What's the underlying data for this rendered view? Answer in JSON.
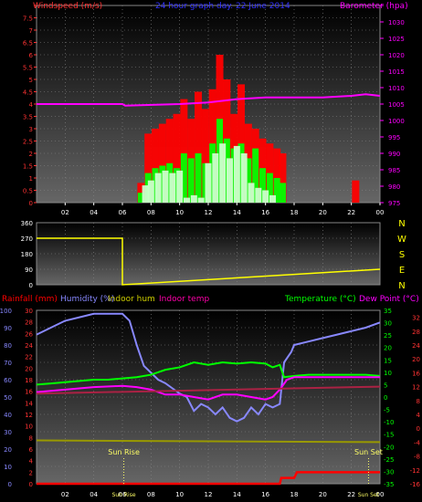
{
  "chart_data": [
    {
      "type": "bar",
      "title": "24 hour graph day. 22 June 2014",
      "ylabel": "Windspeed (m/s)",
      "y2label": "Barometer (hpa)",
      "x_ticks": [
        "02",
        "04",
        "06",
        "08",
        "10",
        "12",
        "14",
        "16",
        "18",
        "20",
        "22",
        "00"
      ],
      "ylim": [
        0,
        8
      ],
      "y_ticks": [
        "0",
        "0.5",
        "1",
        "1.5",
        "2",
        "2.5",
        "3",
        "3.5",
        "4",
        "4.5",
        "5",
        "5.5",
        "6",
        "6.5",
        "7",
        "7.5",
        "8"
      ],
      "y2lim": [
        975,
        1035
      ],
      "y2_ticks": [
        "975",
        "980",
        "985",
        "990",
        "995",
        "1000",
        "1005",
        "1010",
        "1015",
        "1020",
        "1025",
        "1030",
        "1035"
      ],
      "series": [
        {
          "key": "gust",
          "color": "#ff0000",
          "x": [
            7.3,
            7.8,
            8.3,
            8.8,
            9.3,
            9.8,
            10.3,
            10.8,
            11.3,
            11.8,
            12.3,
            12.8,
            13.3,
            13.8,
            14.3,
            14.8,
            15.3,
            15.8,
            16.3,
            16.8,
            17.2,
            22.3
          ],
          "values": [
            0.8,
            2.8,
            3.0,
            3.2,
            3.4,
            3.6,
            4.2,
            3.4,
            4.5,
            3.8,
            4.6,
            6.0,
            5.0,
            3.6,
            4.8,
            3.2,
            3.0,
            2.6,
            2.4,
            2.2,
            2.0,
            0.9
          ]
        },
        {
          "key": "speed",
          "color": "#00ff00",
          "x": [
            7.3,
            7.8,
            8.3,
            8.8,
            9.3,
            9.8,
            10.3,
            10.8,
            11.3,
            11.8,
            12.3,
            12.8,
            13.3,
            13.8,
            14.3,
            14.8,
            15.3,
            15.8,
            16.3,
            16.8,
            17.2
          ],
          "values": [
            0.4,
            1.2,
            1.4,
            1.5,
            1.6,
            1.4,
            2.0,
            1.8,
            2.0,
            1.6,
            2.4,
            3.4,
            2.6,
            2.2,
            2.4,
            1.8,
            2.2,
            1.4,
            1.2,
            1.0,
            0.8
          ]
        },
        {
          "key": "avg",
          "color": "#ccffcc",
          "x": [
            7.6,
            8.0,
            8.5,
            9.0,
            9.5,
            10.0,
            10.5,
            11.0,
            11.5,
            12.0,
            12.5,
            13.0,
            13.5,
            14.0,
            14.5,
            15.0,
            15.5,
            16.0,
            16.5
          ],
          "values": [
            0.7,
            0.9,
            1.2,
            1.3,
            1.2,
            1.3,
            0.2,
            0.3,
            0.2,
            1.6,
            2.0,
            2.4,
            1.8,
            2.3,
            2.0,
            0.8,
            0.6,
            0.5,
            0.3
          ]
        },
        {
          "key": "barometer",
          "color": "#ff00ff",
          "axis": "right",
          "x": [
            0,
            6,
            6.2,
            10,
            12,
            14,
            16,
            18,
            20,
            22,
            23,
            24
          ],
          "values": [
            1005,
            1005,
            1004.5,
            1005,
            1005.5,
            1006.5,
            1007,
            1007,
            1007,
            1007.5,
            1008,
            1007.5
          ]
        }
      ]
    },
    {
      "type": "scatter",
      "ylabel_right": [
        "N",
        "W",
        "S",
        "E",
        "N"
      ],
      "ylim": [
        0,
        360
      ],
      "y_ticks": [
        "0",
        "90",
        "180",
        "270",
        "360"
      ],
      "series": [
        {
          "key": "direction",
          "color": "#ffff00",
          "x": [
            0,
            6.0,
            6.0,
            24
          ],
          "values": [
            270,
            270,
            0,
            90
          ]
        }
      ]
    },
    {
      "type": "line",
      "legend_left": [
        {
          "label": "Rainfall (mm)",
          "color": "#ff0000"
        },
        {
          "label": "Humidity (%)",
          "color": "#8888ff"
        },
        {
          "label": "Indoor hum",
          "color": "#cccc00"
        },
        {
          "label": "Indoor temp",
          "color": "#ff00aa"
        }
      ],
      "legend_right": [
        {
          "label": "Temperature (°C)",
          "color": "#00ff00"
        },
        {
          "label": "Dew Point (°C)",
          "color": "#ff00ff"
        }
      ],
      "y_hum_lim": [
        0,
        100
      ],
      "y_hum_ticks": [
        "0",
        "10",
        "20",
        "30",
        "40",
        "50",
        "60",
        "70",
        "80",
        "90",
        "100"
      ],
      "y_rain_lim": [
        0,
        30
      ],
      "y_rain_ticks": [
        "0",
        "2",
        "4",
        "6",
        "8",
        "10",
        "12",
        "14",
        "16",
        "18",
        "20",
        "22",
        "24",
        "26",
        "28",
        "30"
      ],
      "y_temp_lim": [
        -35,
        35
      ],
      "y_temp_ticks": [
        "-35",
        "-30",
        "-25",
        "-20",
        "-15",
        "-10",
        "-5",
        "0",
        "5",
        "10",
        "15",
        "20",
        "25",
        "30",
        "35"
      ],
      "y_indoor_lim": [
        -16,
        34
      ],
      "y_indoor_ticks": [
        "-16",
        "-14",
        "-12",
        "-10",
        "-8",
        "-6",
        "-4",
        "-2",
        "0",
        "2",
        "4",
        "6",
        "8",
        "10",
        "12",
        "14",
        "16",
        "18",
        "20",
        "22",
        "24",
        "26",
        "28",
        "30",
        "32",
        "34"
      ],
      "x_ticks": [
        "02",
        "04",
        "06",
        "08",
        "10",
        "12",
        "14",
        "16",
        "18",
        "20",
        "22",
        "00"
      ],
      "annotations": [
        {
          "label": "Sun Rise",
          "x": 6.1
        },
        {
          "label": "Sun Set",
          "x": 23.2
        }
      ],
      "bottom_labels": [
        "Sun Rise",
        "Sun Set"
      ],
      "series": [
        {
          "key": "humidity",
          "color": "#8888ff",
          "axis": "hum",
          "x": [
            0,
            1,
            2,
            3,
            4,
            5,
            6,
            6.5,
            7,
            7.5,
            8,
            8.5,
            9,
            9.5,
            10,
            10.5,
            11,
            11.5,
            12,
            12.5,
            13,
            13.5,
            14,
            14.5,
            15,
            15.5,
            16,
            16.5,
            17,
            17.3,
            17.8,
            18,
            19,
            20,
            21,
            22,
            23,
            24
          ],
          "values": [
            86,
            90,
            94,
            96,
            98,
            98,
            98,
            94,
            80,
            68,
            64,
            60,
            58,
            55,
            52,
            50,
            42,
            46,
            44,
            40,
            44,
            38,
            36,
            38,
            44,
            40,
            46,
            44,
            46,
            70,
            76,
            80,
            82,
            84,
            86,
            88,
            90,
            93
          ]
        },
        {
          "key": "temperature",
          "color": "#00ff00",
          "axis": "temp",
          "x": [
            0,
            1,
            2,
            3,
            4,
            5,
            6,
            7,
            8,
            9,
            10,
            11,
            12,
            13,
            14,
            15,
            16,
            16.5,
            17,
            17.3,
            18,
            19,
            20,
            21,
            22,
            23,
            24
          ],
          "values": [
            5,
            5.5,
            6,
            6.5,
            7,
            7,
            7.5,
            8,
            9,
            11,
            12,
            14,
            13,
            14,
            13.5,
            14,
            13.5,
            12,
            13,
            8,
            8.5,
            9,
            9,
            9,
            9,
            9,
            8.5
          ]
        },
        {
          "key": "dewpoint",
          "color": "#ff00ff",
          "axis": "temp",
          "x": [
            0,
            2,
            4,
            6,
            7,
            8,
            9,
            10,
            11,
            12,
            13,
            14,
            15,
            16,
            16.5,
            17,
            17.5,
            18,
            20,
            22,
            24
          ],
          "values": [
            2,
            3,
            4,
            4.5,
            4,
            3,
            1,
            1,
            0,
            -1,
            1,
            1,
            0,
            -1,
            0,
            3,
            7,
            8,
            8,
            8,
            8
          ]
        },
        {
          "key": "indoor_temp",
          "color": "#aa2244",
          "axis": "indoor",
          "x": [
            0,
            24
          ],
          "values": [
            10,
            12
          ]
        },
        {
          "key": "indoor_hum",
          "color": "#999900",
          "axis": "hum",
          "x": [
            0,
            24
          ],
          "values": [
            25,
            24
          ]
        },
        {
          "key": "rainfall",
          "color": "#ff0000",
          "axis": "rain",
          "x": [
            0,
            17.0,
            17.1,
            18.0,
            18.2,
            20.0,
            24
          ],
          "values": [
            0,
            0,
            1,
            1,
            2,
            2,
            2
          ]
        }
      ]
    }
  ]
}
